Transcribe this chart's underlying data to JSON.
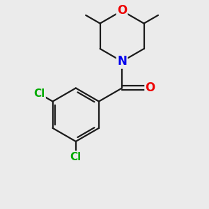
{
  "background_color": "#ebebeb",
  "bond_color": "#1a1a1a",
  "bond_width": 1.6,
  "atom_colors": {
    "N": "#0000ee",
    "O_ring": "#ee0000",
    "O_carbonyl": "#ee0000",
    "Cl": "#00aa00"
  },
  "font_size": 11,
  "figure_size": [
    3.0,
    3.0
  ],
  "dpi": 100
}
